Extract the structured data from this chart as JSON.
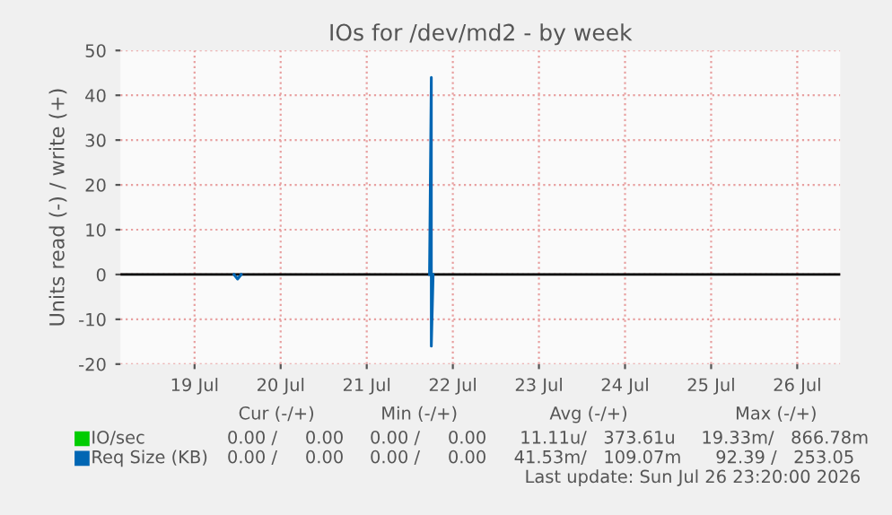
{
  "chart_data": {
    "type": "line",
    "title": "IOs for /dev/md2 - by week",
    "ylabel": "Units read (-) / write (+)",
    "series": [
      {
        "name": "IO/sec",
        "color": "#00cc00"
      },
      {
        "name": "Req Size (KB)",
        "color": "#0066b3",
        "x": [
          "2026-07-22T05:30",
          "2026-07-22T06:00",
          "2026-07-22T06:00",
          "2026-07-22T06:30"
        ],
        "values": [
          0,
          44,
          -16,
          0
        ]
      },
      {
        "color": "#0066b3",
        "x": [
          "2026-07-19T23:00",
          "2026-07-20T00:00",
          "2026-07-20T01:00"
        ],
        "values": [
          0,
          -1,
          0
        ]
      }
    ],
    "xlim": [
      "2026-07-18T15:20",
      "2026-07-27T00:00"
    ],
    "xticks": [
      {
        "value": "2026-07-19T12:00",
        "label": "19 Jul"
      },
      {
        "value": "2026-07-20T12:00",
        "label": "20 Jul"
      },
      {
        "value": "2026-07-21T12:00",
        "label": "21 Jul"
      },
      {
        "value": "2026-07-22T12:00",
        "label": "22 Jul"
      },
      {
        "value": "2026-07-23T12:00",
        "label": "23 Jul"
      },
      {
        "value": "2026-07-24T12:00",
        "label": "24 Jul"
      },
      {
        "value": "2026-07-25T12:00",
        "label": "25 Jul"
      },
      {
        "value": "2026-07-26T12:00",
        "label": "26 Jul"
      }
    ],
    "ylim": [
      -20,
      50
    ],
    "yticks": [
      -20,
      -10,
      0,
      10,
      20,
      30,
      40,
      50
    ],
    "ref_lines": [
      {
        "axis": "y",
        "value": 0,
        "color": "#000000"
      }
    ],
    "grid": true,
    "legend": "bottom",
    "annotations": [
      "Cur (-/+)",
      "Min (-/+)",
      "Avg (-/+)",
      "Max (-/+)",
      "0.00 /     0.00",
      "0.00 /     0.00",
      "11.11u/   373.61u",
      "19.33m/   866.78m",
      "0.00 /     0.00",
      "0.00 /     0.00",
      "41.53m/   109.07m",
      "92.39 /   253.05",
      "Last update: Sun Jul 26 23:20:00 2026"
    ]
  }
}
